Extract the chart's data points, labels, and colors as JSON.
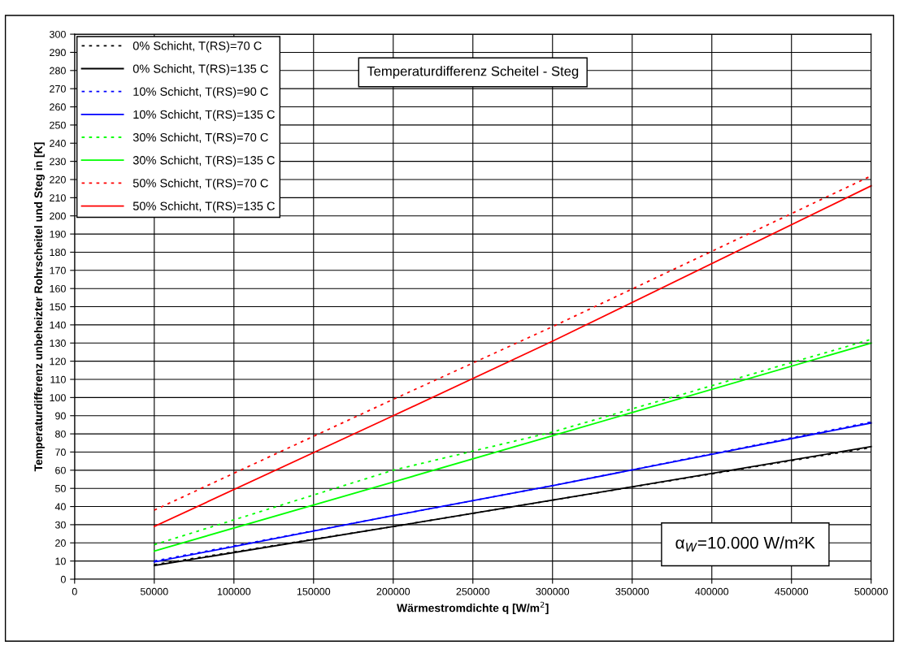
{
  "chart_data": {
    "type": "line",
    "title": "Temperaturdifferenz Scheitel - Steg",
    "xlabel": "Wärmestromdichte q [W/m$^{2}$]",
    "ylabel": "Temperaturdifferenz unbeheizter Rohrscheitel und Steg in [K]",
    "annotations": [
      "α$_{W}$=10.000 W/m²K"
    ],
    "x": [
      50000,
      200000,
      300000,
      500000
    ],
    "xlim": [
      0,
      500000
    ],
    "xticks": [
      0,
      50000,
      100000,
      150000,
      200000,
      250000,
      300000,
      350000,
      400000,
      450000,
      500000
    ],
    "ylim": [
      0,
      300
    ],
    "yticks": [
      0,
      10,
      20,
      30,
      40,
      50,
      60,
      70,
      80,
      90,
      100,
      110,
      120,
      130,
      140,
      150,
      160,
      170,
      180,
      190,
      200,
      210,
      220,
      230,
      240,
      250,
      260,
      270,
      280,
      290,
      300
    ],
    "grid": true,
    "legend": "top left",
    "marker": "none",
    "series": [
      {
        "name": "0% Schicht, T(RS)=70 C",
        "color": "#000000",
        "line_style": "dotted",
        "values": [
          8,
          29,
          43.5,
          72.5
        ]
      },
      {
        "name": "0% Schicht, T(RS)=135 C",
        "color": "#000000",
        "line_style": "solid",
        "values": [
          7.5,
          29,
          43.5,
          73
        ]
      },
      {
        "name": "10% Schicht, T(RS)=90 C",
        "color": "#0000ff",
        "line_style": "dotted",
        "values": [
          10,
          35,
          51.5,
          86.5
        ]
      },
      {
        "name": "10% Schicht, T(RS)=135 C",
        "color": "#0000ff",
        "line_style": "solid",
        "values": [
          9.5,
          35,
          51.5,
          86
        ]
      },
      {
        "name": "30% Schicht, T(RS)=70 C",
        "color": "#00ff00",
        "line_style": "dotted",
        "values": [
          19,
          60,
          81,
          132
        ]
      },
      {
        "name": "30% Schicht, T(RS)=135 C",
        "color": "#00ff00",
        "line_style": "solid",
        "values": [
          15.5,
          53.5,
          79,
          130
        ]
      },
      {
        "name": "50% Schicht, T(RS)=70 C",
        "color": "#ff0000",
        "line_style": "dotted",
        "values": [
          38,
          99,
          139,
          222
        ]
      },
      {
        "name": "50% Schicht, T(RS)=135 C",
        "color": "#ff0000",
        "line_style": "solid",
        "values": [
          29,
          90,
          131,
          216.5
        ]
      }
    ]
  }
}
